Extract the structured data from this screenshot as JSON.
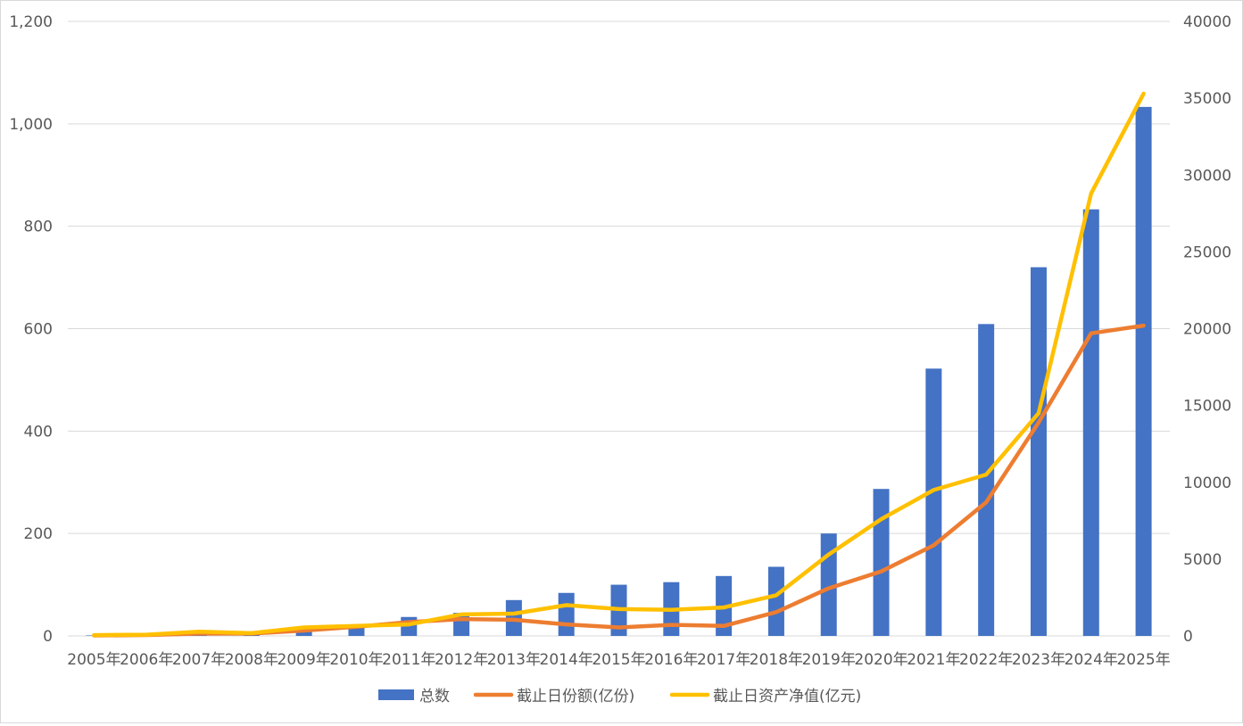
{
  "chart_data": {
    "type": "bar+line",
    "categories": [
      "2005年",
      "2006年",
      "2007年",
      "2008年",
      "2009年",
      "2010年",
      "2011年",
      "2012年",
      "2013年",
      "2014年",
      "2015年",
      "2016年",
      "2017年",
      "2018年",
      "2019年",
      "2020年",
      "2021年",
      "2022年",
      "2023年",
      "2024年",
      "2025年"
    ],
    "series": [
      {
        "name": "总数",
        "type": "bar",
        "axis": "left",
        "color": "#4472C4",
        "values": [
          1,
          4,
          6,
          6,
          10,
          21,
          37,
          45,
          70,
          84,
          100,
          105,
          117,
          135,
          200,
          287,
          522,
          609,
          720,
          833,
          1033
        ]
      },
      {
        "name": "截止日份额(亿份)",
        "type": "line",
        "axis": "right",
        "color": "#ED7D31",
        "values": [
          30,
          60,
          150,
          150,
          350,
          600,
          900,
          1100,
          1050,
          750,
          550,
          720,
          650,
          1550,
          3100,
          4200,
          5900,
          8700,
          13900,
          19700,
          20200
        ]
      },
      {
        "name": "截止日资产净值(亿元)",
        "type": "line",
        "axis": "right",
        "color": "#FFC000",
        "values": [
          50,
          80,
          280,
          180,
          550,
          650,
          750,
          1400,
          1450,
          2000,
          1750,
          1700,
          1850,
          2650,
          5300,
          7600,
          9500,
          10500,
          14500,
          28800,
          35300
        ]
      }
    ],
    "left_axis": {
      "ylim": [
        0,
        1200
      ],
      "ticks": [
        "0",
        "200",
        "400",
        "600",
        "800",
        "1,000",
        "1,200"
      ],
      "tick_values": [
        0,
        200,
        400,
        600,
        800,
        1000,
        1200
      ]
    },
    "right_axis": {
      "ylim": [
        0,
        40000
      ],
      "ticks": [
        "0",
        "5000",
        "10000",
        "15000",
        "20000",
        "25000",
        "30000",
        "35000",
        "40000"
      ],
      "tick_values": [
        0,
        5000,
        10000,
        15000,
        20000,
        25000,
        30000,
        35000,
        40000
      ]
    },
    "grid": true,
    "legend_position": "bottom",
    "gridline_color": "#d9d9d9",
    "text_color": "#595959"
  }
}
